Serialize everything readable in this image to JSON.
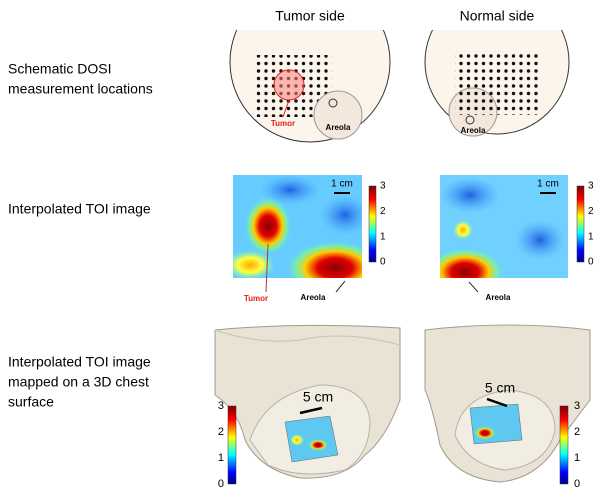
{
  "columns": [
    "Tumor side",
    "Normal side"
  ],
  "rows": [
    {
      "label": [
        "Schematic DOSI",
        "measurement locations"
      ]
    },
    {
      "label": [
        "Interpolated TOI image"
      ]
    },
    {
      "label": [
        "Interpolated TOI image",
        "mapped on a 3D chest",
        "surface"
      ]
    }
  ],
  "schematics": [
    {
      "tumor_label": "Tumor",
      "areola_label": "Areola"
    },
    {
      "areola_label": "Areola"
    }
  ],
  "heatmaps": [
    {
      "scale_label": "1 cm",
      "colorbar_ticks": [
        0,
        1,
        2,
        3
      ],
      "callouts": [
        "Tumor",
        "Areola"
      ]
    },
    {
      "scale_label": "1 cm",
      "colorbar_ticks": [
        0,
        1,
        2,
        3
      ],
      "callouts": [
        "Areola"
      ]
    }
  ],
  "surfaces": [
    {
      "scale_label": "5 cm",
      "colorbar_ticks": [
        0,
        1,
        2,
        3
      ]
    },
    {
      "scale_label": "5 cm",
      "colorbar_ticks": [
        0,
        1,
        2,
        3
      ]
    }
  ]
}
